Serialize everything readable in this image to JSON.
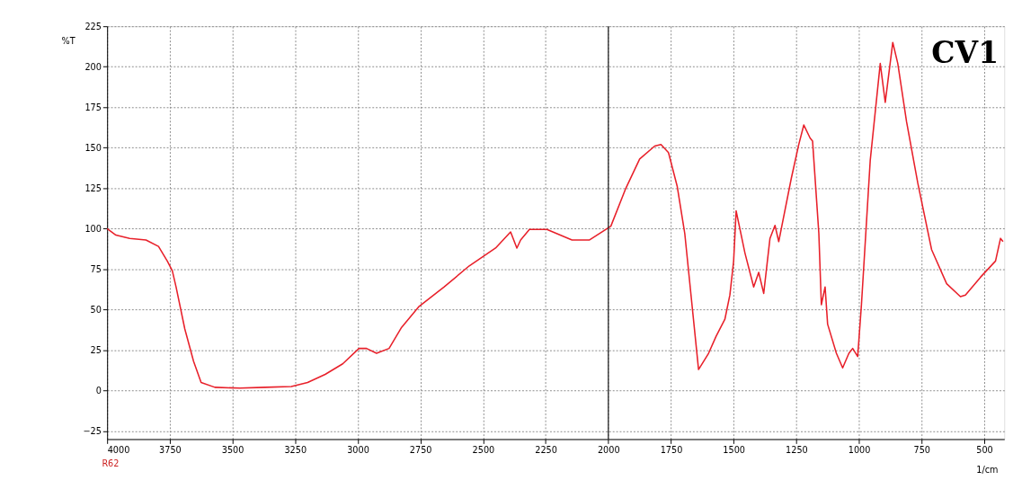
{
  "chart_data": {
    "type": "line",
    "xlabel": "1/cm",
    "ylabel": "%T",
    "x": [
      4000,
      3965,
      3910,
      3845,
      3795,
      3760,
      3740,
      3725,
      3690,
      3655,
      3625,
      3570,
      3470,
      3370,
      3265,
      3200,
      3130,
      3060,
      2995,
      2965,
      2925,
      2875,
      2825,
      2755,
      2655,
      2555,
      2450,
      2390,
      2365,
      2350,
      2315,
      2245,
      2145,
      2075,
      1990,
      1930,
      1875,
      1815,
      1790,
      1760,
      1725,
      1695,
      1640,
      1600,
      1570,
      1535,
      1515,
      1500,
      1490,
      1455,
      1420,
      1400,
      1380,
      1355,
      1335,
      1320,
      1270,
      1240,
      1220,
      1195,
      1185,
      1160,
      1150,
      1135,
      1125,
      1090,
      1065,
      1040,
      1025,
      1005,
      990,
      955,
      915,
      895,
      865,
      845,
      810,
      765,
      710,
      650,
      595,
      575,
      515,
      455,
      435,
      425
    ],
    "series": [
      {
        "color": "#e8202a",
        "values": [
          100,
          96,
          94,
          93,
          89,
          80,
          74,
          64,
          38,
          18,
          5,
          2,
          1.5,
          2,
          2.5,
          5,
          10,
          16.5,
          26,
          26,
          23,
          26,
          39,
          52,
          64,
          77,
          88,
          98,
          88,
          93,
          99.5,
          99.5,
          93,
          93,
          101.5,
          125,
          143,
          151,
          152,
          147,
          126,
          97,
          13,
          23,
          33.5,
          44,
          59,
          80,
          111,
          85,
          64,
          73,
          60,
          94,
          102,
          92,
          131,
          152,
          164,
          156,
          154,
          97,
          53,
          64,
          41,
          23,
          14,
          23,
          26,
          21,
          53,
          142,
          202,
          178,
          215,
          202,
          166,
          128,
          87,
          66,
          58,
          59,
          70,
          80,
          94,
          92
        ]
      }
    ],
    "xlim": [
      4000,
      420
    ],
    "xticks": [
      4000,
      3750,
      3500,
      3250,
      3000,
      2750,
      2500,
      2250,
      2000,
      1750,
      1500,
      1250,
      1000,
      750,
      500
    ],
    "ylim": [
      -30,
      225
    ],
    "yticks": [
      -25,
      0,
      25,
      50,
      75,
      100,
      125,
      150,
      175,
      200,
      225
    ],
    "grid": true,
    "line_style": "solid",
    "ref_lines": [
      {
        "axis": "x",
        "value": 2000,
        "color": "#222222"
      }
    ],
    "annotations": [
      "CV1",
      "R62"
    ]
  }
}
